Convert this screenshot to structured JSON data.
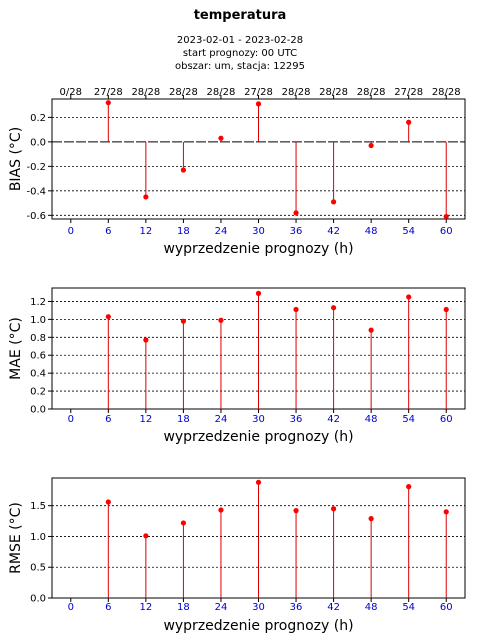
{
  "header": {
    "title": "temperatura",
    "period": "2023-02-01 - 2023-02-28",
    "start": "start prognozy: 00 UTC",
    "area": "obszar: um, stacja: 12295"
  },
  "colors": {
    "marker": "#ff0000",
    "stem": "#dd0000",
    "tick": "#0000cc",
    "zero_line": "#000000"
  },
  "chart_data": [
    {
      "type": "scatter",
      "title": "",
      "xlabel": "wyprzedzenie prognozy (h)",
      "ylabel": "BIAS (°C)",
      "x": [
        0,
        6,
        12,
        18,
        24,
        30,
        36,
        42,
        48,
        54,
        60
      ],
      "x_ticks": [
        "0",
        "6",
        "12",
        "18",
        "24",
        "30",
        "36",
        "42",
        "48",
        "54",
        "60"
      ],
      "top_labels": [
        "0/28",
        "27/28",
        "28/28",
        "28/28",
        "28/28",
        "27/28",
        "28/28",
        "28/28",
        "28/28",
        "27/28",
        "28/28"
      ],
      "values": [
        null,
        0.32,
        -0.45,
        -0.23,
        0.03,
        0.31,
        -0.58,
        -0.49,
        -0.03,
        0.16,
        -0.61
      ],
      "ylim": [
        -0.63,
        0.35
      ],
      "y_ticks": [
        -0.6,
        -0.4,
        -0.2,
        0.0,
        0.2
      ],
      "y_tick_labels": [
        "-0.6",
        "-0.4",
        "-0.2",
        "0.0",
        "0.2"
      ],
      "grid": true,
      "zero_line": true
    },
    {
      "type": "scatter",
      "title": "",
      "xlabel": "wyprzedzenie prognozy (h)",
      "ylabel": "MAE (°C)",
      "x": [
        0,
        6,
        12,
        18,
        24,
        30,
        36,
        42,
        48,
        54,
        60
      ],
      "x_ticks": [
        "0",
        "6",
        "12",
        "18",
        "24",
        "30",
        "36",
        "42",
        "48",
        "54",
        "60"
      ],
      "values": [
        null,
        1.03,
        0.77,
        0.98,
        0.99,
        1.29,
        1.11,
        1.13,
        0.88,
        1.25,
        1.11
      ],
      "ylim": [
        0,
        1.35
      ],
      "y_ticks": [
        0.0,
        0.2,
        0.4,
        0.6,
        0.8,
        1.0,
        1.2
      ],
      "y_tick_labels": [
        "0.0",
        "0.2",
        "0.4",
        "0.6",
        "0.8",
        "1.0",
        "1.2"
      ],
      "grid": true
    },
    {
      "type": "scatter",
      "title": "",
      "xlabel": "wyprzedzenie prognozy (h)",
      "ylabel": "RMSE (°C)",
      "x": [
        0,
        6,
        12,
        18,
        24,
        30,
        36,
        42,
        48,
        54,
        60
      ],
      "x_ticks": [
        "0",
        "6",
        "12",
        "18",
        "24",
        "30",
        "36",
        "42",
        "48",
        "54",
        "60"
      ],
      "values": [
        null,
        1.56,
        1.01,
        1.22,
        1.43,
        1.88,
        1.42,
        1.45,
        1.29,
        1.81,
        1.4
      ],
      "ylim": [
        0,
        1.95
      ],
      "y_ticks": [
        0.0,
        0.5,
        1.0,
        1.5
      ],
      "y_tick_labels": [
        "0.0",
        "0.5",
        "1.0",
        "1.5"
      ],
      "grid": true
    }
  ]
}
